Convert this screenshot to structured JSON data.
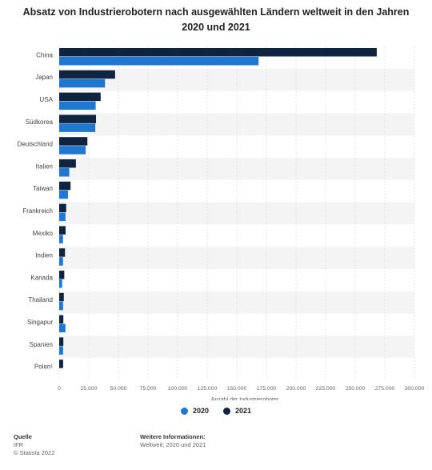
{
  "title_line1": "Absatz von Industrierobotern nach ausgewählten Ländern weltweit in den Jahren",
  "title_line2": "2020 und 2021",
  "colors": {
    "series_2020": "#1f77d0",
    "series_2021": "#0f2440",
    "band": "#f4f4f4",
    "grid": "#d6d6d6"
  },
  "legend": {
    "s2020": "2020",
    "s2021": "2021"
  },
  "footer": {
    "source_label": "Quelle",
    "source": "IFR",
    "copyright": "© Statista 2022",
    "info_label": "Weitere Informationen:",
    "info": "Weltweit; 2020 und 2021"
  },
  "chart_data": {
    "type": "bar",
    "orientation": "horizontal",
    "categories": [
      "China",
      "Japan",
      "USA",
      "Südkorea",
      "Deutschland",
      "Italien",
      "Taiwan",
      "Frankreich",
      "Mexiko",
      "Indien",
      "Kanada",
      "Thailand",
      "Singapur",
      "Spanien",
      "Polen¹"
    ],
    "series": [
      {
        "name": "2021",
        "values": [
          268200,
          47200,
          35000,
          31100,
          23800,
          14100,
          9600,
          5900,
          5400,
          4900,
          4300,
          3900,
          3500,
          3500,
          3300
        ]
      },
      {
        "name": "2020",
        "values": [
          168400,
          38700,
          30800,
          30500,
          22300,
          8500,
          7400,
          5300,
          3200,
          3200,
          2500,
          3300,
          5300,
          3300,
          0
        ]
      }
    ],
    "xlabel": "Anzahl der Industrieroboter",
    "xlim": [
      0,
      300000
    ],
    "xticks": [
      "0",
      "25.000",
      "50.000",
      "75.000",
      "100.000",
      "125.000",
      "150.000",
      "175.000",
      "200.000",
      "225.000",
      "250.000",
      "275.000",
      "300.000"
    ],
    "grid": true,
    "legend_position": "bottom"
  }
}
